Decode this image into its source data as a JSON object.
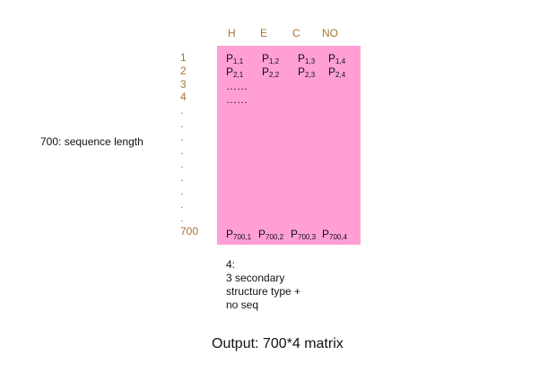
{
  "columns": [
    "H",
    "E",
    "C",
    "NO"
  ],
  "row_labels": [
    "1",
    "2",
    "3",
    "4"
  ],
  "dots": [
    ".",
    ".",
    ".",
    ".",
    ".",
    ".",
    ".",
    ".",
    ".",
    ".",
    "."
  ],
  "last_row_label": "700",
  "side_label": "700: sequence length",
  "matrix": {
    "row1": [
      {
        "sym": "P",
        "sub": "1,1"
      },
      {
        "sym": "P",
        "sub": "1,2"
      },
      {
        "sym": "P",
        "sub": "1,3"
      },
      {
        "sym": "P",
        "sub": "1,4"
      }
    ],
    "row2": [
      {
        "sym": "P",
        "sub": "2,1"
      },
      {
        "sym": "P",
        "sub": "2,2"
      },
      {
        "sym": "P",
        "sub": "2,3"
      },
      {
        "sym": "P",
        "sub": "2,4"
      }
    ],
    "ellipsis": [
      "……",
      "……"
    ],
    "row700": [
      {
        "sym": "P",
        "sub": "700,1"
      },
      {
        "sym": "P",
        "sub": "700,2"
      },
      {
        "sym": "P",
        "sub": "700,3"
      },
      {
        "sym": "P",
        "sub": "700,4"
      }
    ]
  },
  "note_lines": [
    "4:",
    "3 secondary",
    "structure type +",
    "no seq"
  ],
  "caption": "Output: 700*4 matrix",
  "colors": {
    "matrix_fill": "#ff9fd4",
    "label_color": "#a87433"
  }
}
